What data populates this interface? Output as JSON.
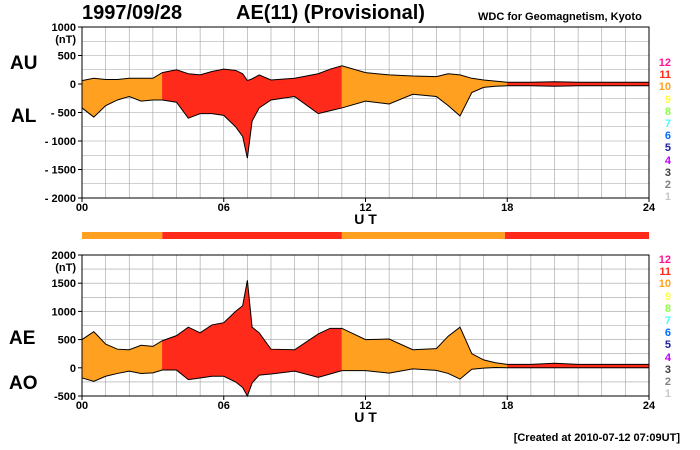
{
  "header": {
    "date": "1997/09/28",
    "title": "AE(11) (Provisional)",
    "source": "WDC for Geomagnetism, Kyoto"
  },
  "footer": {
    "created": "[Created at 2010-07-12 07:09UT]"
  },
  "colors": {
    "background": "#ffffff",
    "grid": "#a0a0a0",
    "outline": "#000000",
    "level_colors": {
      "12": "#ff1493",
      "11": "#ff2a1a",
      "10": "#ffa020",
      "9": "#ffff40",
      "8": "#90ff40",
      "7": "#40ffff",
      "6": "#0070ff",
      "5": "#2020a0",
      "4": "#c000ff",
      "3": "#404040",
      "2": "#808080",
      "1": "#c8c8c8"
    }
  },
  "legend_levels": [
    "12",
    "11",
    "10",
    "9",
    "8",
    "7",
    "6",
    "5",
    "4",
    "3",
    "2",
    "1"
  ],
  "activity_bar": [
    {
      "start": 0,
      "end": 3.4,
      "level": "10"
    },
    {
      "start": 3.4,
      "end": 11,
      "level": "11"
    },
    {
      "start": 11,
      "end": 17.9,
      "level": "10"
    },
    {
      "start": 17.9,
      "end": 24,
      "level": "11"
    }
  ],
  "chart_data": [
    {
      "type": "area",
      "panel": "top",
      "label_upper": "AU",
      "label_lower": "AL",
      "unit_label": "(nT)",
      "xlabel": "U T",
      "xlim": [
        0,
        24
      ],
      "ylim": [
        -2000,
        1000
      ],
      "xticks": [
        "00",
        "06",
        "12",
        "18",
        "24"
      ],
      "yticks": [
        "1000",
        "500",
        "0",
        "- 500",
        "- 1000",
        "- 1500",
        "- 2000"
      ],
      "grid": true,
      "x": [
        0,
        0.5,
        1,
        1.5,
        2,
        2.5,
        3,
        3.4,
        4,
        4.5,
        5,
        5.5,
        6,
        6.5,
        6.8,
        7,
        7.2,
        7.5,
        8,
        9,
        10,
        10.5,
        11,
        12,
        13,
        14,
        15,
        15.5,
        16,
        16.5,
        17,
        17.5,
        18,
        19,
        20,
        21,
        22,
        23,
        24
      ],
      "series": [
        {
          "name": "AU",
          "values": [
            60,
            100,
            80,
            80,
            100,
            100,
            100,
            200,
            250,
            180,
            160,
            220,
            260,
            240,
            180,
            60,
            90,
            160,
            70,
            100,
            180,
            260,
            320,
            200,
            160,
            140,
            130,
            180,
            160,
            100,
            70,
            50,
            30,
            30,
            40,
            30,
            30,
            30,
            30
          ]
        },
        {
          "name": "AL",
          "values": [
            -420,
            -580,
            -380,
            -280,
            -220,
            -300,
            -280,
            -280,
            -320,
            -600,
            -520,
            -520,
            -550,
            -750,
            -920,
            -1300,
            -650,
            -420,
            -280,
            -220,
            -520,
            -470,
            -420,
            -300,
            -350,
            -180,
            -220,
            -380,
            -560,
            -150,
            -60,
            -40,
            -30,
            -30,
            -40,
            -30,
            -30,
            -30,
            -30
          ]
        }
      ]
    },
    {
      "type": "area",
      "panel": "bottom",
      "label_upper": "AE",
      "label_lower": "AO",
      "unit_label": "(nT)",
      "xlabel": "U T",
      "xlim": [
        0,
        24
      ],
      "ylim": [
        -500,
        2000
      ],
      "xticks": [
        "00",
        "06",
        "12",
        "18",
        "24"
      ],
      "yticks": [
        "2000",
        "1500",
        "1000",
        "500",
        "0",
        "-500"
      ],
      "grid": true,
      "x": [
        0,
        0.5,
        1,
        1.5,
        2,
        2.5,
        3,
        3.4,
        4,
        4.5,
        5,
        5.5,
        6,
        6.5,
        6.8,
        7,
        7.2,
        7.5,
        8,
        9,
        10,
        10.5,
        11,
        12,
        13,
        14,
        15,
        15.5,
        16,
        16.5,
        17,
        17.5,
        18,
        19,
        20,
        21,
        22,
        23,
        24
      ],
      "series": [
        {
          "name": "AE",
          "values": [
            500,
            640,
            420,
            330,
            320,
            400,
            380,
            480,
            570,
            720,
            620,
            760,
            800,
            1000,
            1100,
            1550,
            720,
            620,
            330,
            320,
            600,
            700,
            700,
            500,
            510,
            320,
            340,
            560,
            720,
            250,
            140,
            90,
            60,
            60,
            80,
            60,
            60,
            60,
            60
          ]
        },
        {
          "name": "AO",
          "values": [
            -180,
            -240,
            -150,
            -100,
            -60,
            -100,
            -90,
            -40,
            -40,
            -210,
            -180,
            -150,
            -150,
            -250,
            -350,
            -500,
            -270,
            -130,
            -110,
            -60,
            -170,
            -110,
            -50,
            -50,
            -95,
            -20,
            -45,
            -100,
            -200,
            -25,
            -5,
            5,
            0,
            0,
            0,
            0,
            0,
            0,
            0
          ]
        }
      ]
    }
  ]
}
